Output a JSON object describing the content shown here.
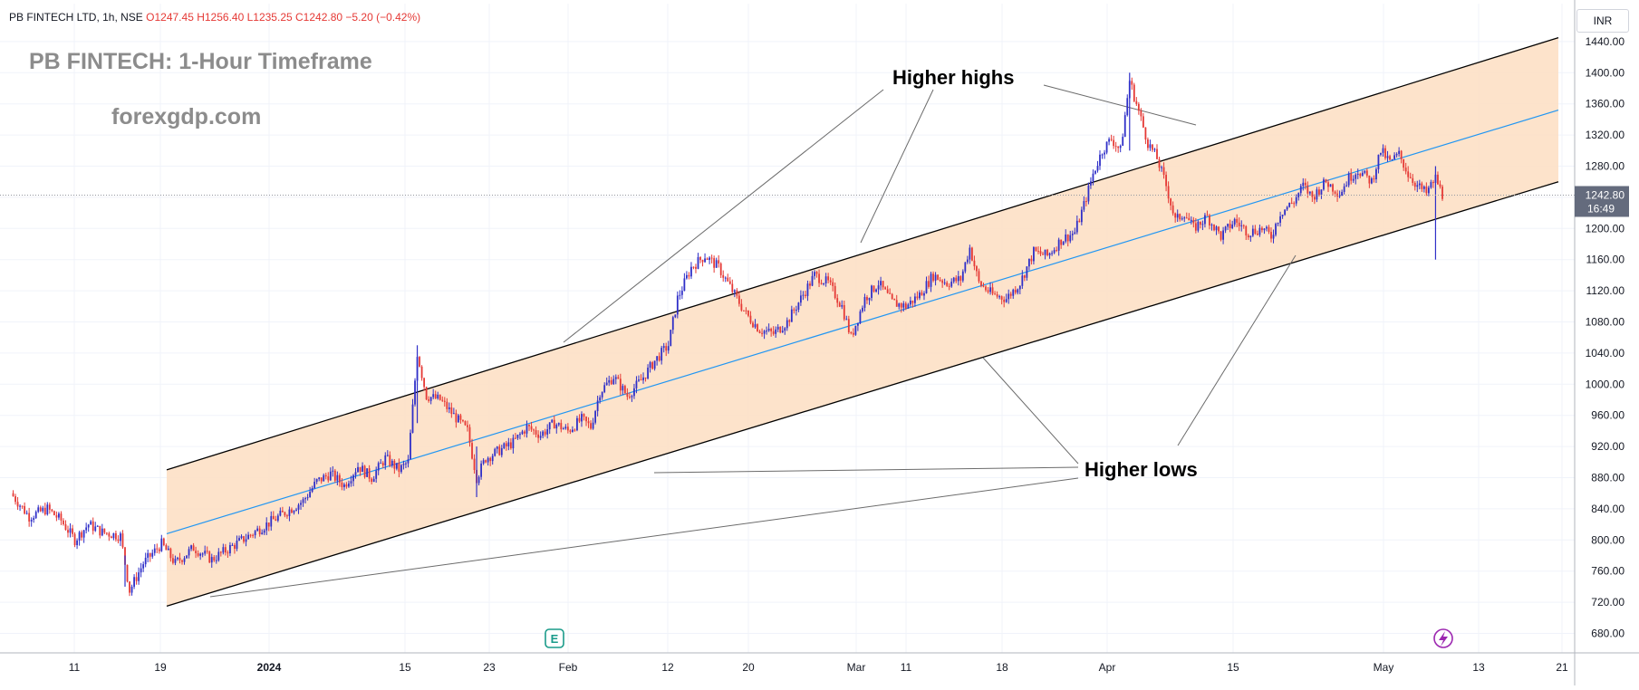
{
  "legend": {
    "symbol": "PB FINTECH LTD, 1h, NSE",
    "open": "O1247.45",
    "high": "H1256.40",
    "low": "L1235.25",
    "close": "C1242.80",
    "change": "−5.20 (−0.42%)"
  },
  "watermark": {
    "title": "PB FINTECH: 1-Hour Timeframe",
    "site": "forexgdp.com"
  },
  "currency": "INR",
  "price_label": {
    "value": "1242.80",
    "countdown": "16:49"
  },
  "annotations": {
    "higher_highs": "Higher highs",
    "higher_lows": "Higher lows"
  },
  "event_icons": {
    "earnings": "E",
    "flash": "lightning-icon"
  },
  "colors": {
    "up": "#2f2fc8",
    "down": "#e53935",
    "channel_fill": "#fde0c5",
    "channel_line": "#000000",
    "mid_line": "#2196f3",
    "price_tag": "#646b7d",
    "earnings_icon": "#1a9b8a",
    "flash_icon": "#9c27b0"
  },
  "chart_data": {
    "type": "candlestick",
    "y_axis": {
      "ticks": [
        "680.00",
        "720.00",
        "760.00",
        "800.00",
        "840.00",
        "880.00",
        "920.00",
        "960.00",
        "1000.00",
        "1040.00",
        "1080.00",
        "1120.00",
        "1160.00",
        "1200.00",
        "1240.00",
        "1280.00",
        "1320.00",
        "1360.00",
        "1400.00",
        "1440.00"
      ],
      "range": [
        655,
        1455
      ]
    },
    "x_axis": {
      "ticks": [
        {
          "label": "11",
          "bold": false
        },
        {
          "label": "19",
          "bold": false
        },
        {
          "label": "2024",
          "bold": true
        },
        {
          "label": "15",
          "bold": false
        },
        {
          "label": "23",
          "bold": false
        },
        {
          "label": "Feb",
          "bold": false
        },
        {
          "label": "12",
          "bold": false
        },
        {
          "label": "20",
          "bold": false
        },
        {
          "label": "Mar",
          "bold": false
        },
        {
          "label": "11",
          "bold": false
        },
        {
          "label": "18",
          "bold": false
        },
        {
          "label": "Apr",
          "bold": false
        },
        {
          "label": "15",
          "bold": false
        },
        {
          "label": "May",
          "bold": false
        },
        {
          "label": "13",
          "bold": false
        },
        {
          "label": "21",
          "bold": false
        }
      ]
    },
    "channel": {
      "upper": [
        [
          0,
          890
        ],
        [
          1
        ],
        [
          1445
        ]
      ],
      "lower": [
        [
          0,
          715
        ],
        [
          1
        ],
        [
          1260
        ]
      ],
      "mid": [
        [
          0,
          808
        ],
        [
          1
        ],
        [
          1352
        ]
      ]
    },
    "last_price": 1242.8,
    "path": [
      [
        0,
        860
      ],
      [
        8,
        830
      ],
      [
        16,
        840
      ],
      [
        22,
        825
      ],
      [
        28,
        800
      ],
      [
        34,
        820
      ],
      [
        40,
        810
      ],
      [
        48,
        805
      ],
      [
        52,
        735
      ],
      [
        58,
        770
      ],
      [
        66,
        795
      ],
      [
        72,
        770
      ],
      [
        80,
        790
      ],
      [
        88,
        775
      ],
      [
        96,
        790
      ],
      [
        104,
        805
      ],
      [
        112,
        820
      ],
      [
        120,
        835
      ],
      [
        128,
        850
      ],
      [
        134,
        875
      ],
      [
        140,
        885
      ],
      [
        146,
        870
      ],
      [
        152,
        895
      ],
      [
        158,
        880
      ],
      [
        164,
        905
      ],
      [
        170,
        890
      ],
      [
        174,
        900
      ],
      [
        178,
        1040
      ],
      [
        182,
        985
      ],
      [
        188,
        980
      ],
      [
        194,
        960
      ],
      [
        200,
        940
      ],
      [
        204,
        880
      ],
      [
        208,
        905
      ],
      [
        214,
        915
      ],
      [
        220,
        925
      ],
      [
        226,
        945
      ],
      [
        232,
        935
      ],
      [
        238,
        950
      ],
      [
        244,
        940
      ],
      [
        250,
        955
      ],
      [
        254,
        945
      ],
      [
        258,
        990
      ],
      [
        264,
        1010
      ],
      [
        270,
        985
      ],
      [
        276,
        1005
      ],
      [
        282,
        1030
      ],
      [
        288,
        1050
      ],
      [
        292,
        1110
      ],
      [
        298,
        1150
      ],
      [
        304,
        1165
      ],
      [
        310,
        1150
      ],
      [
        316,
        1120
      ],
      [
        322,
        1090
      ],
      [
        328,
        1070
      ],
      [
        334,
        1065
      ],
      [
        340,
        1080
      ],
      [
        346,
        1110
      ],
      [
        352,
        1140
      ],
      [
        358,
        1130
      ],
      [
        364,
        1100
      ],
      [
        368,
        1060
      ],
      [
        374,
        1110
      ],
      [
        380,
        1130
      ],
      [
        386,
        1105
      ],
      [
        392,
        1100
      ],
      [
        398,
        1115
      ],
      [
        404,
        1140
      ],
      [
        410,
        1130
      ],
      [
        416,
        1135
      ],
      [
        420,
        1175
      ],
      [
        424,
        1130
      ],
      [
        430,
        1115
      ],
      [
        436,
        1110
      ],
      [
        442,
        1130
      ],
      [
        448,
        1170
      ],
      [
        454,
        1165
      ],
      [
        460,
        1185
      ],
      [
        466,
        1195
      ],
      [
        470,
        1230
      ],
      [
        474,
        1270
      ],
      [
        478,
        1300
      ],
      [
        482,
        1315
      ],
      [
        486,
        1300
      ],
      [
        490,
        1390
      ],
      [
        494,
        1350
      ],
      [
        498,
        1310
      ],
      [
        502,
        1290
      ],
      [
        506,
        1255
      ],
      [
        510,
        1210
      ],
      [
        514,
        1220
      ],
      [
        518,
        1200
      ],
      [
        524,
        1215
      ],
      [
        530,
        1190
      ],
      [
        536,
        1210
      ],
      [
        542,
        1195
      ],
      [
        548,
        1200
      ],
      [
        552,
        1190
      ],
      [
        556,
        1220
      ],
      [
        562,
        1235
      ],
      [
        566,
        1255
      ],
      [
        570,
        1240
      ],
      [
        576,
        1260
      ],
      [
        582,
        1245
      ],
      [
        586,
        1265
      ],
      [
        590,
        1275
      ],
      [
        596,
        1260
      ],
      [
        600,
        1300
      ],
      [
        604,
        1285
      ],
      [
        608,
        1295
      ],
      [
        612,
        1270
      ],
      [
        616,
        1255
      ],
      [
        620,
        1245
      ],
      [
        624,
        1265
      ],
      [
        627,
        1243
      ]
    ]
  }
}
